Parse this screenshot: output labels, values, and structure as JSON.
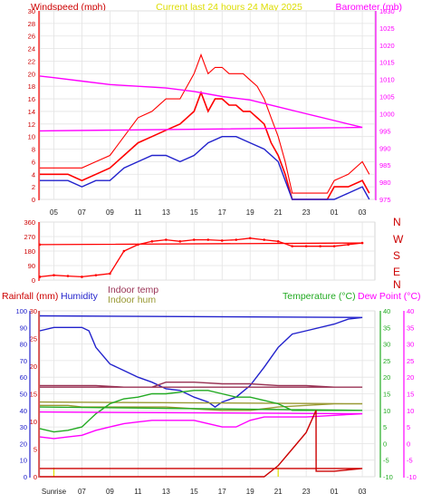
{
  "chart_data": [
    {
      "type": "line",
      "header": {
        "left": "Windspeed (mph)",
        "center": "Current last 24 hours 24 May 2025",
        "right": "Barometer (mb)"
      },
      "x_ticks": [
        "05",
        "07",
        "09",
        "11",
        "13",
        "15",
        "17",
        "19",
        "21",
        "23",
        "01",
        "03"
      ],
      "ylim_left": [
        0,
        30
      ],
      "y_ticks_left": [
        "0",
        "2",
        "4",
        "6",
        "8",
        "10",
        "12",
        "14",
        "16",
        "18",
        "20",
        "22",
        "24",
        "26",
        "28",
        "30"
      ],
      "ylim_right": [
        975,
        1030
      ],
      "y_ticks_right": [
        "975",
        "980",
        "985",
        "990",
        "995",
        "1000",
        "1005",
        "1010",
        "1015",
        "1020",
        "1025",
        "1030"
      ],
      "grid": true,
      "series": [
        {
          "name": "Windspeed (mph)",
          "color": "#ff0000",
          "x": [
            4.0,
            5.0,
            6.0,
            7.0,
            8.0,
            9.0,
            10.0,
            11.0,
            12.0,
            13.0,
            14.0,
            15.0,
            15.5,
            16.0,
            16.5,
            17.0,
            17.5,
            18.0,
            18.5,
            19.0,
            19.5,
            20.0,
            20.5,
            21.0,
            21.5,
            22.0,
            23.0,
            0.5,
            1.0,
            2.0,
            3.0,
            3.5
          ],
          "y": [
            4,
            4,
            4,
            3,
            4,
            5,
            7,
            9,
            10,
            11,
            12,
            14,
            17,
            14,
            16,
            16,
            15,
            15,
            14,
            14,
            13,
            12,
            9,
            7,
            4,
            0,
            0,
            0,
            2,
            2,
            3,
            1
          ]
        },
        {
          "name": "Wind gust (mph)",
          "color": "#ff0000",
          "x": [
            4.0,
            5.0,
            6.0,
            7.0,
            8.0,
            9.0,
            10.0,
            11.0,
            12.0,
            13.0,
            14.0,
            15.0,
            15.5,
            16.0,
            16.5,
            17.0,
            17.5,
            18.0,
            18.5,
            19.0,
            19.5,
            20.0,
            20.5,
            21.0,
            21.5,
            22.0,
            23.0,
            0.5,
            1.0,
            2.0,
            3.0,
            3.5
          ],
          "y": [
            5,
            5,
            5,
            5,
            6,
            7,
            10,
            13,
            14,
            16,
            16,
            20,
            23,
            20,
            21,
            21,
            20,
            20,
            20,
            19,
            18,
            16,
            13,
            10,
            6,
            1,
            1,
            1,
            3,
            4,
            6,
            4
          ]
        },
        {
          "name": "Average windspeed (mph)",
          "color": "#2222cc",
          "x": [
            4.0,
            5.0,
            6.0,
            7.0,
            8.0,
            9.0,
            10.0,
            11.0,
            12.0,
            13.0,
            14.0,
            15.0,
            16.0,
            17.0,
            18.0,
            19.0,
            20.0,
            21.0,
            22.0,
            23.0,
            1.0,
            2.0,
            3.0,
            3.5
          ],
          "y": [
            3,
            3,
            3,
            2,
            3,
            3,
            5,
            6,
            7,
            7,
            6,
            7,
            9,
            10,
            10,
            9,
            8,
            6,
            0,
            0,
            0,
            1,
            2,
            0
          ]
        },
        {
          "name": "Barometer (mb)",
          "axis": "right",
          "color": "#ff00ff",
          "x": [
            4.0,
            5.0,
            7.0,
            9.0,
            11.0,
            13.0,
            15.0,
            17.0,
            19.0,
            21.0,
            23.0,
            1.0,
            3.0,
            4.0
          ],
          "y": [
            1011,
            1010.5,
            1009.5,
            1008.5,
            1008,
            1007.5,
            1006.5,
            1005,
            1004,
            1002,
            1000,
            998,
            996,
            995
          ]
        }
      ]
    },
    {
      "type": "scatter",
      "ylim": [
        0,
        360
      ],
      "y_ticks": [
        "0",
        "90",
        "180",
        "270",
        "360"
      ],
      "right_labels": [
        "N",
        "W",
        "S",
        "E",
        "N"
      ],
      "grid": true,
      "series": [
        {
          "name": "Wind direction (degrees)",
          "color": "#ff0000",
          "x": [
            4.0,
            5.0,
            6.0,
            7.0,
            8.0,
            9.0,
            10.0,
            11.0,
            12.0,
            13.0,
            14.0,
            15.0,
            16.0,
            17.0,
            18.0,
            19.0,
            20.0,
            21.0,
            22.0,
            23.0,
            0.0,
            1.0,
            2.0,
            3.0,
            4.0
          ],
          "y": [
            20,
            30,
            25,
            20,
            30,
            40,
            180,
            220,
            240,
            250,
            240,
            250,
            250,
            245,
            250,
            260,
            250,
            240,
            210,
            210,
            210,
            210,
            220,
            230,
            220
          ]
        }
      ]
    },
    {
      "type": "line",
      "header": {
        "rainfall": "Rainfall (mm)",
        "humidity": "Humidity",
        "indoor_temp": "Indoor temp",
        "indoor_hum": "Indoor hum",
        "temperature": "Temperature (°C)",
        "dew_point": "Dew Point (°C)"
      },
      "x_ticks": [
        "Sunrise",
        "07",
        "09",
        "11",
        "13",
        "15",
        "17",
        "19",
        "21",
        "23",
        "01",
        "03"
      ],
      "sunrise_label": "Sunrise",
      "ylim_humidity": [
        0,
        100
      ],
      "y_ticks_humidity": [
        "0",
        "10",
        "20",
        "30",
        "40",
        "50",
        "60",
        "70",
        "80",
        "90",
        "100"
      ],
      "ylim_rainfall": [
        0,
        30
      ],
      "y_ticks_rainfall": [
        "0",
        "5",
        "10",
        "15",
        "20",
        "25",
        "30"
      ],
      "ylim_temperature": [
        -10,
        40
      ],
      "y_ticks_temperature": [
        "-10",
        "-5",
        "0",
        "5",
        "10",
        "15",
        "20",
        "25",
        "30",
        "35",
        "40"
      ],
      "grid": true,
      "series": [
        {
          "name": "Humidity",
          "color": "#2222cc",
          "x": [
            4.0,
            5.0,
            6.0,
            7.0,
            7.5,
            8.0,
            9.0,
            10.0,
            11.0,
            12.0,
            13.0,
            14.0,
            15.0,
            16.0,
            16.5,
            17.0,
            18.0,
            19.0,
            20.0,
            21.0,
            22.0,
            23.0,
            1.0,
            2.0,
            3.0,
            4.0
          ],
          "y": [
            88,
            90,
            90,
            90,
            88,
            78,
            68,
            64,
            60,
            57,
            53,
            52,
            48,
            45,
            42,
            45,
            48,
            55,
            66,
            78,
            86,
            88,
            92,
            95,
            96,
            97
          ]
        },
        {
          "name": "Indoor temp",
          "axis": "temperature",
          "color": "#993355",
          "x": [
            4.0,
            6.0,
            8.0,
            10.0,
            12.0,
            13.0,
            15.0,
            17.0,
            19.0,
            21.0,
            23.0,
            1.0,
            3.0,
            4.0
          ],
          "y": [
            17.5,
            17.5,
            17.5,
            17,
            17,
            18.5,
            18.5,
            18,
            18,
            17.5,
            17.5,
            17,
            17,
            17
          ]
        },
        {
          "name": "Indoor hum",
          "color": "#999933",
          "x": [
            4.0,
            6.0,
            7.0,
            9.0,
            11.0,
            13.0,
            15.0,
            17.0,
            19.0,
            20.0,
            21.0,
            23.0,
            1.0,
            3.0,
            4.0
          ],
          "y": [
            43,
            43,
            42,
            42,
            42,
            42,
            41,
            40,
            40,
            41,
            42,
            43,
            44,
            44,
            45
          ]
        },
        {
          "name": "Temperature (°C)",
          "axis": "temperature",
          "color": "#22aa22",
          "x": [
            4.0,
            5.0,
            6.0,
            7.0,
            8.0,
            9.0,
            10.0,
            11.0,
            12.0,
            13.0,
            14.0,
            15.0,
            16.0,
            17.0,
            18.0,
            19.0,
            20.0,
            21.0,
            22.0,
            23.0,
            1.0,
            3.0,
            4.0
          ],
          "y": [
            4.5,
            3.5,
            4,
            5,
            9,
            12,
            13.5,
            14,
            15,
            15,
            15.5,
            16,
            16,
            15,
            14,
            14,
            13,
            12,
            10,
            10,
            10,
            10,
            11
          ]
        },
        {
          "name": "Dew Point (°C)",
          "axis": "temperature",
          "color": "#ff00ff",
          "x": [
            4.0,
            5.0,
            6.0,
            7.0,
            8.0,
            9.0,
            10.0,
            11.0,
            12.0,
            13.0,
            14.0,
            15.0,
            16.0,
            17.0,
            18.0,
            19.0,
            20.0,
            21.0,
            22.0,
            23.0,
            1.0,
            3.0,
            4.0
          ],
          "y": [
            2,
            1.5,
            2,
            2.5,
            4,
            5,
            6,
            6.5,
            7,
            7,
            7,
            7,
            6,
            5,
            5,
            7,
            8,
            8,
            8,
            8,
            8.5,
            9,
            9.5
          ]
        },
        {
          "name": "Rainfall (mm)",
          "axis": "rainfall",
          "color": "#cc0000",
          "x": [
            4.0,
            19.5,
            20.0,
            21.0,
            22.0,
            23.0,
            23.7,
            23.71,
            1.0,
            3.0,
            4.0
          ],
          "y": [
            0,
            0,
            0,
            2,
            5,
            8,
            12,
            1,
            1,
            1.5,
            1.5
          ]
        }
      ]
    }
  ]
}
